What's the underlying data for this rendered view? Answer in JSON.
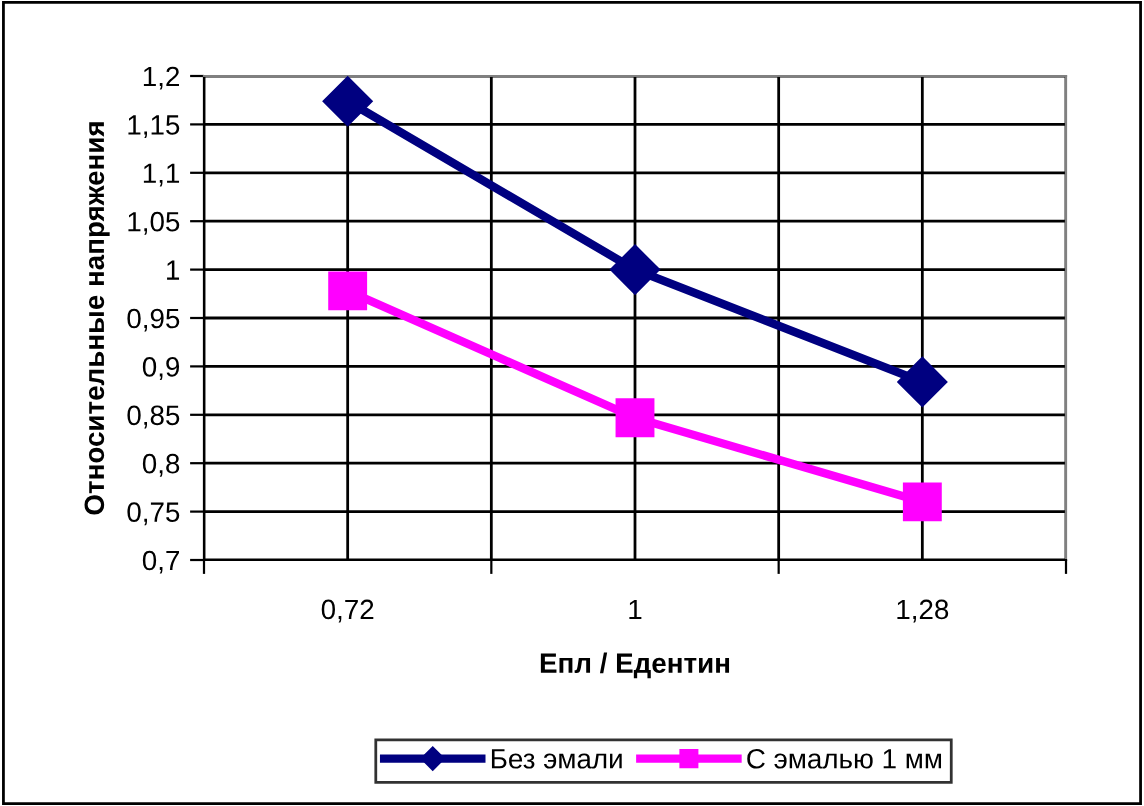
{
  "chart_data": {
    "type": "line",
    "xlabel": "Епл / Едентин",
    "ylabel": "Относительные напряжения",
    "categories": [
      "0,72",
      "1",
      "1,28"
    ],
    "series": [
      {
        "name": "Без эмали",
        "color": "#000080",
        "marker": "diamond",
        "values": [
          1.174,
          1.0,
          0.884
        ]
      },
      {
        "name": "С эмалью 1 мм",
        "color": "#ff00ff",
        "marker": "square",
        "values": [
          0.978,
          0.847,
          0.76
        ]
      }
    ],
    "ylim": [
      0.7,
      1.2
    ],
    "yticks": [
      {
        "value": 0.7,
        "label": "0,7"
      },
      {
        "value": 0.75,
        "label": "0,75"
      },
      {
        "value": 0.8,
        "label": "0,8"
      },
      {
        "value": 0.85,
        "label": "0,85"
      },
      {
        "value": 0.9,
        "label": "0,9"
      },
      {
        "value": 0.95,
        "label": "0,95"
      },
      {
        "value": 1.0,
        "label": "1"
      },
      {
        "value": 1.05,
        "label": "1,05"
      },
      {
        "value": 1.1,
        "label": "1,1"
      },
      {
        "value": 1.15,
        "label": "1,15"
      },
      {
        "value": 1.2,
        "label": "1,2"
      }
    ],
    "grid": true,
    "legend": "bottom",
    "line_style": "solid"
  }
}
